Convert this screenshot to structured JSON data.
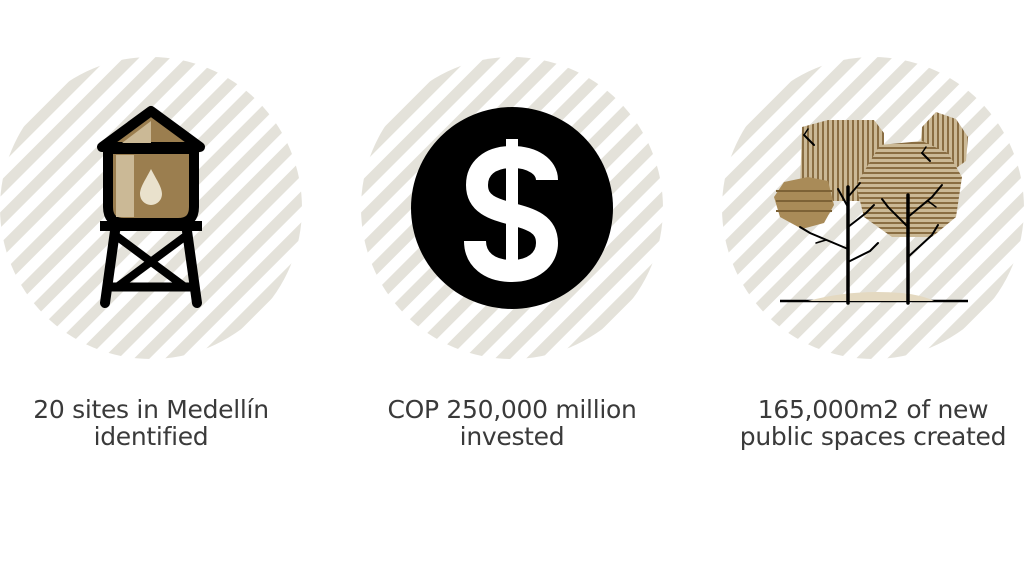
{
  "colors": {
    "stripe": "#e4e2da",
    "tan": "#9b7e4f",
    "light_tan": "#cbb996",
    "ink": "#000000",
    "text": "#3a3a3a"
  },
  "stats": [
    {
      "icon": "water-tower-icon",
      "caption_line1": "20 sites in Medellín",
      "caption_line2": "identified"
    },
    {
      "icon": "dollar-coin-icon",
      "caption_line1": "COP 250,000 million",
      "caption_line2": "invested"
    },
    {
      "icon": "trees-icon",
      "caption_line1": "165,000m2 of new",
      "caption_line2": "public spaces created"
    }
  ]
}
